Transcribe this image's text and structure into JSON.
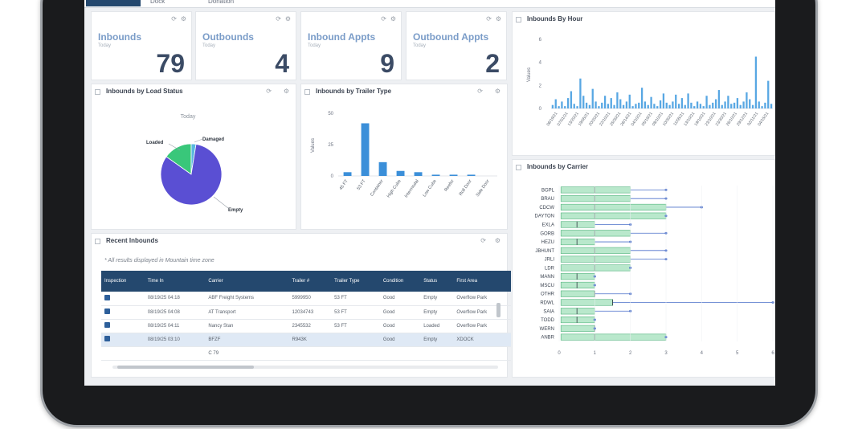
{
  "tabs": [
    {
      "label": ""
    },
    {
      "label": "Dock"
    },
    {
      "label": "Donation"
    }
  ],
  "kpis": [
    {
      "title": "Inbounds",
      "sub": "Today",
      "value": "79"
    },
    {
      "title": "Outbounds",
      "sub": "Today",
      "value": "4"
    },
    {
      "title": "Inbound Appts",
      "sub": "Today",
      "value": "9"
    },
    {
      "title": "Outbound Appts",
      "sub": "Today",
      "value": "2"
    }
  ],
  "panels": {
    "by_hour": "Inbounds By Hour",
    "by_load_status": "Inbounds by Load Status",
    "by_trailer_type": "Inbounds by Trailer Type",
    "by_carrier": "Inbounds by Carrier",
    "recent": "Recent Inbounds"
  },
  "recent": {
    "note": "* All results displayed in Mountain time zone",
    "columns": [
      "Inspection",
      "Time In",
      "Carrier",
      "Trailer #",
      "Trailer Type",
      "Condition",
      "Status",
      "First Area"
    ],
    "rows": [
      [
        "",
        "08/19/25 04:18",
        "ABF Freight Systems",
        "5999950",
        "53 FT",
        "Good",
        "Empty",
        "Overflow Park"
      ],
      [
        "",
        "08/19/25 04:08",
        "AT Transport",
        "12034743",
        "53 FT",
        "Good",
        "Empty",
        "Overflow Park"
      ],
      [
        "",
        "08/19/25 04:11",
        "Nancy Stan",
        "2345532",
        "53 FT",
        "Good",
        "Loaded",
        "Overflow Park"
      ],
      [
        "",
        "08/19/25 03:10",
        "BFZF",
        "R943K",
        "",
        "Good",
        "Empty",
        "XDOCK"
      ],
      [
        "",
        "",
        "C 79",
        "",
        "",
        "",
        "",
        ""
      ]
    ]
  },
  "chart_data": [
    {
      "type": "pie",
      "subtitle": "Today",
      "labels": [
        "Loaded",
        "Damaged",
        "Empty"
      ],
      "values": [
        12,
        2,
        65
      ],
      "colors": [
        "#39c77a",
        "#58b7e0",
        "#5a4fd3"
      ]
    },
    {
      "type": "bar",
      "categories": [
        "45 FT",
        "53 FT",
        "Container",
        "High Cube",
        "Intermodal",
        "Low Cube",
        "Reefer",
        "Roll Door",
        "Side Door"
      ],
      "values": [
        3,
        42,
        11,
        4,
        3,
        1,
        1,
        1,
        0
      ],
      "ylabel": "Values",
      "yticks": [
        0,
        25,
        50
      ],
      "ylim": [
        0,
        50
      ],
      "color": "#3b8fd9"
    },
    {
      "type": "bar",
      "ylabel": "Values",
      "yticks": [
        0,
        2,
        4,
        6
      ],
      "ylim": [
        0,
        6
      ],
      "xticklabels": [
        "06/19/21",
        "07/01/21",
        "13/20/21",
        "19/05/21",
        "20/20/21",
        "22/10/21",
        "25/30/21",
        "26/14/21",
        "04/10/21",
        "05/19/21",
        "08/10/21",
        "10/30/21",
        "11/05/21",
        "13/10/21",
        "19/10/21",
        "23/10/21",
        "23/30/21",
        "26/10/21",
        "29/12/21",
        "02/11/21",
        "04/15/21"
      ],
      "values": [
        0.3,
        0.8,
        0.2,
        0.6,
        0.2,
        0.9,
        1.5,
        0.4,
        0.2,
        2.6,
        1.1,
        0.5,
        0.3,
        1.7,
        0.6,
        0.2,
        0.5,
        1.1,
        0.4,
        0.9,
        0.3,
        1.4,
        0.8,
        0.3,
        0.6,
        1.2,
        0.2,
        0.4,
        0.5,
        1.8,
        0.6,
        0.3,
        1.0,
        0.4,
        0.2,
        0.7,
        1.3,
        0.5,
        0.3,
        0.6,
        1.2,
        0.4,
        0.9,
        0.3,
        1.3,
        0.5,
        0.2,
        0.6,
        0.4,
        0.2,
        1.1,
        0.3,
        0.5,
        0.8,
        1.6,
        0.3,
        0.6,
        1.1,
        0.4,
        0.5,
        0.9,
        0.3,
        0.6,
        1.4,
        0.8,
        0.3,
        4.5,
        0.6,
        0.2,
        0.5,
        2.4,
        0.4
      ],
      "color": "#58a7e3"
    },
    {
      "type": "boxplot",
      "categories": [
        "BGPL",
        "BRAU",
        "CDCW",
        "DAYTON",
        "EXLA",
        "GORB",
        "HEZU",
        "JBHUNT",
        "JRLI",
        "LDR",
        "MANN",
        "MSCU",
        "OTHR",
        "RDWL",
        "SAIA",
        "TODD",
        "WERN",
        "ANBR"
      ],
      "xticks": [
        0,
        1,
        2,
        3,
        4,
        5,
        6
      ],
      "xlim": [
        0,
        6
      ],
      "boxes": [
        {
          "q1": 0.05,
          "q3": 2.0,
          "median": 1.0,
          "max": 3.0
        },
        {
          "q1": 0.05,
          "q3": 2.0,
          "median": 1.0,
          "max": 3.0
        },
        {
          "q1": 0.05,
          "q3": 3.0,
          "median": 1.0,
          "max": 4.0
        },
        {
          "q1": 0.05,
          "q3": 3.0,
          "median": 1.0,
          "max": 3.0
        },
        {
          "q1": 0.05,
          "q3": 1.0,
          "median": 0.5,
          "max": 2.0
        },
        {
          "q1": 0.05,
          "q3": 2.0,
          "median": 1.0,
          "max": 3.0
        },
        {
          "q1": 0.05,
          "q3": 1.0,
          "median": 0.5,
          "max": 2.0
        },
        {
          "q1": 0.05,
          "q3": 2.0,
          "median": 1.0,
          "max": 3.0
        },
        {
          "q1": 0.05,
          "q3": 2.0,
          "median": 1.0,
          "max": 3.0
        },
        {
          "q1": 0.05,
          "q3": 2.0,
          "median": 1.0,
          "max": 2.0
        },
        {
          "q1": 0.05,
          "q3": 1.0,
          "median": 0.5,
          "max": 1.0
        },
        {
          "q1": 0.05,
          "q3": 1.0,
          "median": 0.5,
          "max": 1.0
        },
        {
          "q1": 0.05,
          "q3": 1.0,
          "median": 1.0,
          "max": 2.0
        },
        {
          "q1": 0.05,
          "q3": 1.5,
          "median": 1.5,
          "max": 6.0
        },
        {
          "q1": 0.05,
          "q3": 1.0,
          "median": 0.5,
          "max": 2.0
        },
        {
          "q1": 0.05,
          "q3": 1.0,
          "median": 0.5,
          "max": 1.0
        },
        {
          "q1": 0.05,
          "q3": 1.0,
          "median": 1.0,
          "max": 1.0
        },
        {
          "q1": 0.05,
          "q3": 3.0,
          "median": 1.0,
          "max": 3.0
        }
      ],
      "box_color": "#7fd6a2",
      "line_color": "#4a6fc9"
    }
  ]
}
